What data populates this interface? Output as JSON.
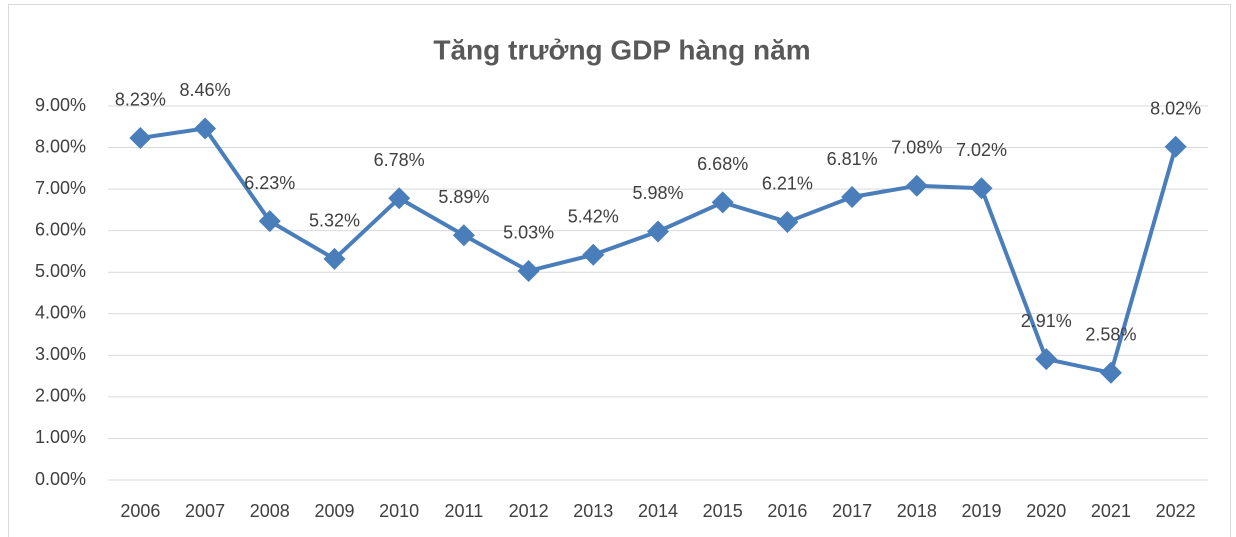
{
  "chart_data": {
    "type": "line",
    "title": "Tăng trưởng GDP hàng năm",
    "categories": [
      "2006",
      "2007",
      "2008",
      "2009",
      "2010",
      "2011",
      "2012",
      "2013",
      "2014",
      "2015",
      "2016",
      "2017",
      "2018",
      "2019",
      "2020",
      "2021",
      "2022"
    ],
    "series": [
      {
        "color": "#4a7ebb",
        "values": [
          8.23,
          8.46,
          6.23,
          5.32,
          6.78,
          5.89,
          5.03,
          5.42,
          5.98,
          6.68,
          6.21,
          6.81,
          7.08,
          7.02,
          2.91,
          2.58,
          8.02
        ],
        "value_labels": [
          "8.23%",
          "8.46%",
          "6.23%",
          "5.32%",
          "6.78%",
          "5.89%",
          "5.03%",
          "5.42%",
          "5.98%",
          "6.68%",
          "6.21%",
          "6.81%",
          "7.08%",
          "7.02%",
          "2.91%",
          "2.58%",
          "8.02%"
        ]
      }
    ],
    "ylim": [
      0,
      9
    ],
    "yticks": [
      {
        "value": 0,
        "label": "0.00%"
      },
      {
        "value": 1,
        "label": "1.00%"
      },
      {
        "value": 2,
        "label": "2.00%"
      },
      {
        "value": 3,
        "label": "3.00%"
      },
      {
        "value": 4,
        "label": "4.00%"
      },
      {
        "value": 5,
        "label": "5.00%"
      },
      {
        "value": 6,
        "label": "6.00%"
      },
      {
        "value": 7,
        "label": "7.00%"
      },
      {
        "value": 8,
        "label": "8.00%"
      },
      {
        "value": 9,
        "label": "9.00%"
      }
    ],
    "grid": true
  }
}
